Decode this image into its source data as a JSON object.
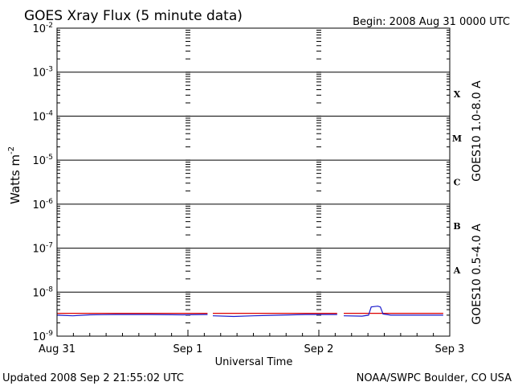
{
  "header": {
    "title": "GOES Xray Flux (5 minute data)",
    "begin_label": "Begin:  2008 Aug 31 0000 UTC"
  },
  "footer": {
    "updated": "Updated 2008 Sep  2 21:55:02 UTC",
    "credit": "NOAA/SWPC Boulder, CO USA"
  },
  "chart_data": {
    "type": "line",
    "ylabel": "Watts m",
    "ylabel_sup": "-2",
    "xlabel": "Universal Time",
    "y_scale": "log",
    "ylim": [
      1e-09,
      0.01
    ],
    "y_ticks": [
      {
        "base": "10",
        "exp": "-2",
        "value": 0.01
      },
      {
        "base": "10",
        "exp": "-3",
        "value": 0.001
      },
      {
        "base": "10",
        "exp": "-4",
        "value": 0.0001
      },
      {
        "base": "10",
        "exp": "-5",
        "value": 1e-05
      },
      {
        "base": "10",
        "exp": "-6",
        "value": 1e-06
      },
      {
        "base": "10",
        "exp": "-7",
        "value": 1e-07
      },
      {
        "base": "10",
        "exp": "-8",
        "value": 1e-08
      },
      {
        "base": "10",
        "exp": "-9",
        "value": 1e-09
      }
    ],
    "xlim": [
      0,
      3
    ],
    "x_ticks": [
      {
        "label": "Aug 31",
        "value": 0
      },
      {
        "label": "Sep 1",
        "value": 1
      },
      {
        "label": "Sep 2",
        "value": 2
      },
      {
        "label": "Sep 3",
        "value": 3
      }
    ],
    "flare_classes": [
      {
        "label": "X",
        "value": 0.000316
      },
      {
        "label": "M",
        "value": 3.16e-05
      },
      {
        "label": "C",
        "value": 3.16e-06
      },
      {
        "label": "B",
        "value": 3.16e-07
      },
      {
        "label": "A",
        "value": 3.16e-08
      }
    ],
    "grid": true,
    "legend_placement": "right (vertical)",
    "series": [
      {
        "name": "GOES10 1.0-8.0 A",
        "color": "#dd0000",
        "segments": [
          [
            [
              0.0,
              3.3e-09
            ],
            [
              0.15,
              3.3e-09
            ],
            [
              0.4,
              3.3e-09
            ],
            [
              0.7,
              3.3e-09
            ],
            [
              0.96,
              3.3e-09
            ],
            [
              1.15,
              3.3e-09
            ]
          ],
          [
            [
              1.19,
              3.3e-09
            ],
            [
              1.5,
              3.3e-09
            ],
            [
              1.8,
              3.3e-09
            ],
            [
              2.14,
              3.3e-09
            ]
          ],
          [
            [
              2.19,
              3.3e-09
            ],
            [
              2.35,
              3.3e-09
            ],
            [
              2.42,
              3.3e-09
            ],
            [
              2.5,
              3.3e-09
            ],
            [
              2.7,
              3.3e-09
            ],
            [
              2.95,
              3.3e-09
            ]
          ]
        ]
      },
      {
        "name": "GOES10 0.5-4.0 A",
        "color": "#1a1acc",
        "segments": [
          [
            [
              0.0,
              3e-09
            ],
            [
              0.12,
              2.9e-09
            ],
            [
              0.25,
              3.05e-09
            ],
            [
              0.45,
              3.1e-09
            ],
            [
              0.7,
              3.1e-09
            ],
            [
              0.96,
              3.05e-09
            ],
            [
              1.15,
              3.1e-09
            ]
          ],
          [
            [
              1.19,
              2.9e-09
            ],
            [
              1.35,
              2.8e-09
            ],
            [
              1.5,
              2.9e-09
            ],
            [
              1.7,
              3e-09
            ],
            [
              1.9,
              3.1e-09
            ],
            [
              2.14,
              3.1e-09
            ]
          ],
          [
            [
              2.19,
              2.9e-09
            ],
            [
              2.33,
              2.85e-09
            ],
            [
              2.38,
              3e-09
            ],
            [
              2.4,
              4.6e-09
            ],
            [
              2.45,
              4.8e-09
            ],
            [
              2.47,
              4.6e-09
            ],
            [
              2.49,
              3.2e-09
            ],
            [
              2.55,
              3e-09
            ],
            [
              2.7,
              3e-09
            ],
            [
              2.95,
              3e-09
            ]
          ]
        ]
      }
    ]
  }
}
